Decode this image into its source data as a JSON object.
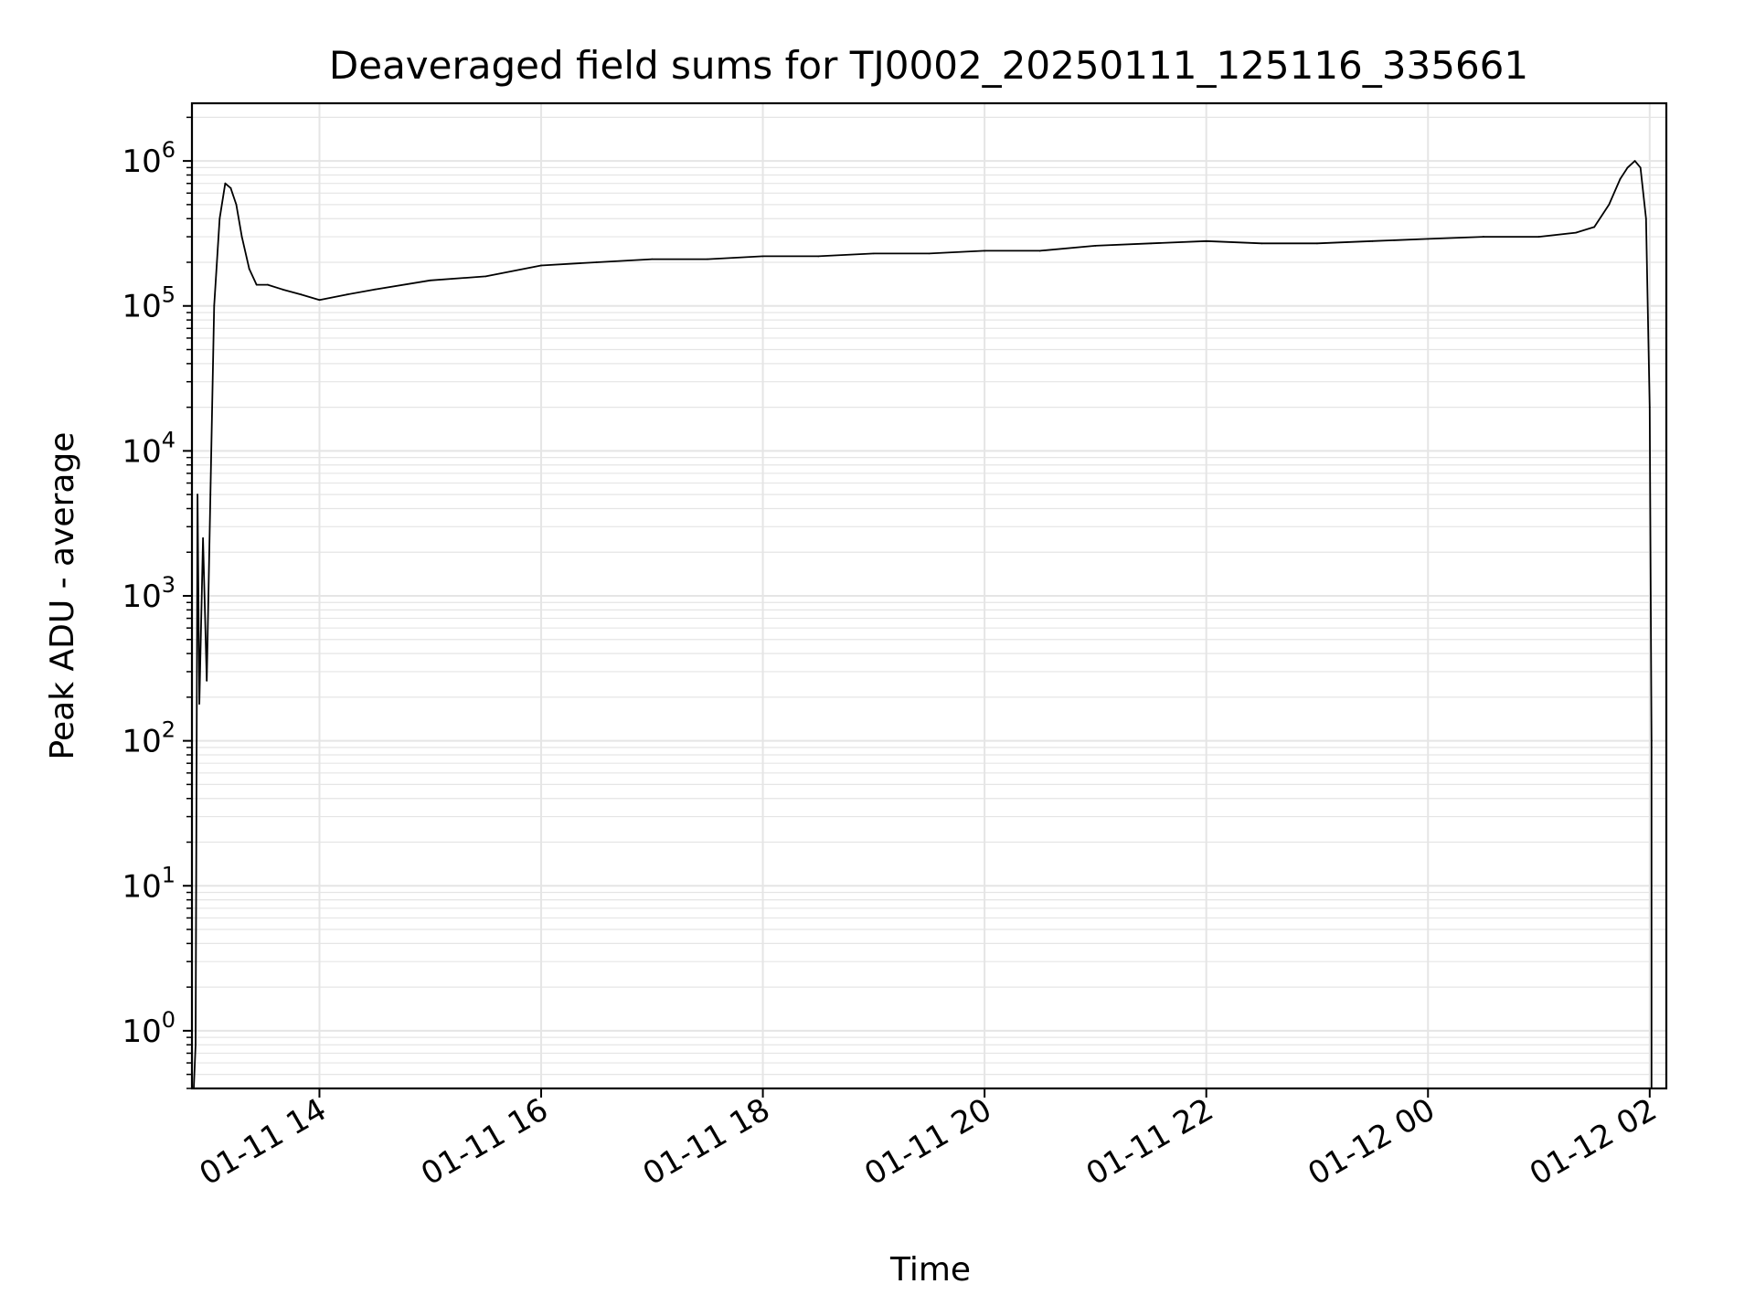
{
  "chart_data": {
    "type": "line",
    "title": "Deaveraged field sums for TJ0002_20250111_125116_335661",
    "xlabel": "Time",
    "ylabel": "Peak ADU - average",
    "yscale": "log",
    "grid": true,
    "grid_minor_y": true,
    "line_color": "#000000",
    "grid_color": "#e5e5e5",
    "xlim": [
      "2025-01-11 12:51",
      "2025-01-12 02:09"
    ],
    "ylim": [
      0.4,
      2500000
    ],
    "x_ticks": [
      {
        "value": "2025-01-11 14:00",
        "label": "01-11 14"
      },
      {
        "value": "2025-01-11 16:00",
        "label": "01-11 16"
      },
      {
        "value": "2025-01-11 18:00",
        "label": "01-11 18"
      },
      {
        "value": "2025-01-11 20:00",
        "label": "01-11 20"
      },
      {
        "value": "2025-01-11 22:00",
        "label": "01-11 22"
      },
      {
        "value": "2025-01-12 00:00",
        "label": "01-12 00"
      },
      {
        "value": "2025-01-12 02:00",
        "label": "01-12 02"
      }
    ],
    "y_ticks": [
      {
        "value": 1,
        "base": "10",
        "exp": "0"
      },
      {
        "value": 10,
        "base": "10",
        "exp": "1"
      },
      {
        "value": 100,
        "base": "10",
        "exp": "2"
      },
      {
        "value": 1000,
        "base": "10",
        "exp": "3"
      },
      {
        "value": 10000,
        "base": "10",
        "exp": "4"
      },
      {
        "value": 100000,
        "base": "10",
        "exp": "5"
      },
      {
        "value": 1000000,
        "base": "10",
        "exp": "6"
      }
    ],
    "series": [
      {
        "x": [
          "2025-01-11 12:52",
          "2025-01-11 12:53",
          "2025-01-11 12:54",
          "2025-01-11 12:55",
          "2025-01-11 12:57",
          "2025-01-11 12:59",
          "2025-01-11 13:01",
          "2025-01-11 13:03",
          "2025-01-11 13:06",
          "2025-01-11 13:09",
          "2025-01-11 13:12",
          "2025-01-11 13:15",
          "2025-01-11 13:18",
          "2025-01-11 13:22",
          "2025-01-11 13:26",
          "2025-01-11 13:32",
          "2025-01-11 13:40",
          "2025-01-11 13:50",
          "2025-01-11 14:00",
          "2025-01-11 14:15",
          "2025-01-11 14:30",
          "2025-01-11 15:00",
          "2025-01-11 15:30",
          "2025-01-11 16:00",
          "2025-01-11 16:30",
          "2025-01-11 17:00",
          "2025-01-11 17:30",
          "2025-01-11 18:00",
          "2025-01-11 18:30",
          "2025-01-11 19:00",
          "2025-01-11 19:30",
          "2025-01-11 20:00",
          "2025-01-11 20:30",
          "2025-01-11 21:00",
          "2025-01-11 21:30",
          "2025-01-11 22:00",
          "2025-01-11 22:30",
          "2025-01-11 23:00",
          "2025-01-11 23:30",
          "2025-01-12 00:00",
          "2025-01-12 00:30",
          "2025-01-12 01:00",
          "2025-01-12 01:20",
          "2025-01-12 01:30",
          "2025-01-12 01:38",
          "2025-01-12 01:44",
          "2025-01-12 01:48",
          "2025-01-12 01:52",
          "2025-01-12 01:55",
          "2025-01-12 01:58",
          "2025-01-12 02:00",
          "2025-01-12 02:01",
          "2025-01-12 02:01",
          "2025-01-12 02:01"
        ],
        "y": [
          0.4,
          0.8,
          5000,
          180,
          2500,
          260,
          5000,
          100000,
          400000,
          700000,
          650000,
          500000,
          300000,
          180000,
          140000,
          140000,
          130000,
          120000,
          110000,
          120000,
          130000,
          150000,
          160000,
          190000,
          200000,
          210000,
          210000,
          220000,
          220000,
          230000,
          230000,
          240000,
          240000,
          260000,
          270000,
          280000,
          270000,
          270000,
          280000,
          290000,
          300000,
          300000,
          320000,
          350000,
          500000,
          750000,
          900000,
          1000000,
          900000,
          400000,
          20000,
          100,
          0.4,
          90
        ]
      }
    ]
  }
}
